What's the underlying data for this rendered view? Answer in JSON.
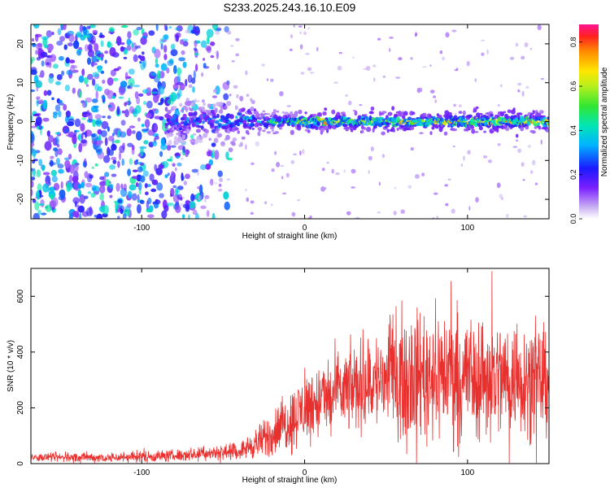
{
  "title": "S233.2025.243.16.10.E09",
  "chart_data": [
    {
      "type": "heatmap",
      "name": "spectrogram",
      "xlabel": "Height of straight line (km)",
      "ylabel": "Frequency (Hz)",
      "xlim": [
        -168,
        150
      ],
      "ylim": [
        -25,
        25
      ],
      "xticks": [
        -100,
        0,
        100
      ],
      "xtick_labels": [
        "-100",
        "0",
        "100"
      ],
      "yticks": [
        -20,
        -10,
        0,
        10,
        20
      ],
      "ytick_labels": [
        "-20",
        "-10",
        "0",
        "10",
        "20"
      ],
      "signal_band": {
        "x_start": -85,
        "x_end": 150,
        "center_hz": 0,
        "peak_amplitude": 0.85
      },
      "noise_region": {
        "x_start": -168,
        "x_end": -80,
        "amplitude_range": [
          0.1,
          0.45
        ]
      },
      "colorbar": {
        "label": "Normalized spectral amplitude",
        "range": [
          0.0,
          0.88
        ],
        "ticks": [
          0.0,
          0.2,
          0.4,
          0.6,
          0.8
        ],
        "tick_labels": [
          "0.0",
          "0.2",
          "0.4",
          "0.6",
          "0.8"
        ],
        "colormap": "rainbow"
      }
    },
    {
      "type": "line",
      "name": "snr",
      "xlabel": "Height of straight line (km)",
      "ylabel": "SNR (10 * v/v)",
      "xlim": [
        -168,
        150
      ],
      "ylim": [
        0,
        700
      ],
      "xticks": [
        -100,
        0,
        100
      ],
      "xtick_labels": [
        "-100",
        "0",
        "100"
      ],
      "yticks": [
        0,
        200,
        400,
        600
      ],
      "ytick_labels": [
        "0",
        "200",
        "400",
        "600"
      ],
      "color": "#e8302e",
      "trend": {
        "x": [
          -168,
          -120,
          -80,
          -60,
          -40,
          -25,
          -10,
          0,
          20,
          40,
          60,
          80,
          100,
          120,
          150
        ],
        "y": [
          22,
          22,
          28,
          38,
          45,
          85,
          150,
          200,
          250,
          290,
          320,
          330,
          320,
          310,
          300
        ]
      },
      "spread": {
        "x": [
          -168,
          -80,
          -40,
          -20,
          0,
          40,
          60,
          100,
          150
        ],
        "y": [
          8,
          12,
          15,
          45,
          70,
          90,
          120,
          130,
          100
        ]
      },
      "peak": {
        "x": 115,
        "y": 690
      }
    }
  ]
}
